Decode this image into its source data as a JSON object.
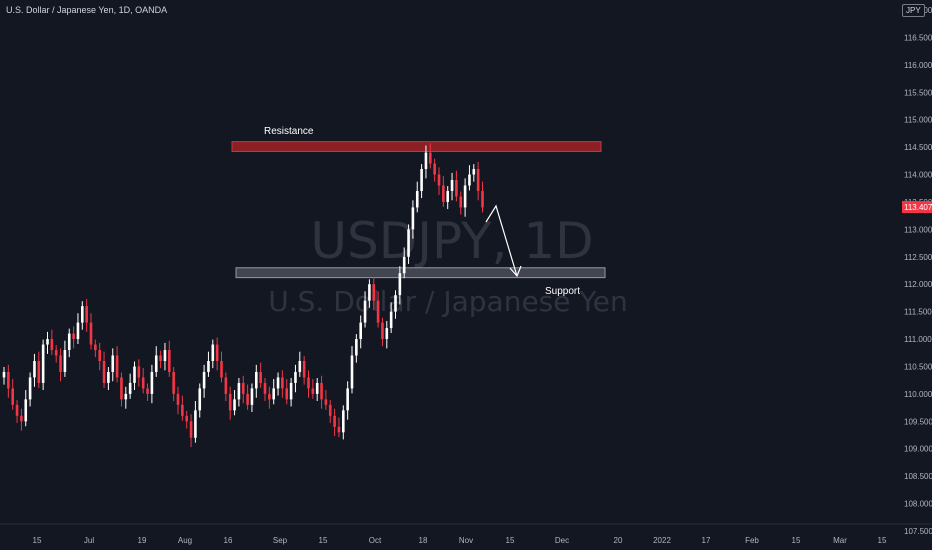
{
  "header": {
    "title": "U.S. Dollar / Japanese Yen, 1D, OANDA",
    "currency": "JPY"
  },
  "watermark": {
    "symbol": "USDJPY, 1D",
    "name": "U.S. Dollar / Japanese Yen"
  },
  "annotations": {
    "resistance_label": "Resistance",
    "support_label": "Support"
  },
  "colors": {
    "background": "#131722",
    "up": "#ffffff",
    "down": "#f23645",
    "resistance": "#8b1f24",
    "support": "#434651",
    "last_price": "#f23645"
  },
  "chart_data": {
    "type": "candlestick",
    "title": "U.S. Dollar / Japanese Yen, 1D, OANDA",
    "ylim": [
      107.5,
      117.0
    ],
    "y_ticks": [
      "107.500",
      "108.000",
      "108.500",
      "109.000",
      "109.500",
      "110.000",
      "110.500",
      "111.000",
      "111.500",
      "112.000",
      "112.500",
      "113.000",
      "113.500",
      "114.000",
      "114.500",
      "115.000",
      "115.500",
      "116.000",
      "116.500",
      "117.000"
    ],
    "x_ticks": [
      "15",
      "Jul",
      "19",
      "Aug",
      "16",
      "Sep",
      "15",
      "Oct",
      "18",
      "Nov",
      "15",
      "Dec",
      "20",
      "2022",
      "17",
      "Feb",
      "15",
      "Mar",
      "15"
    ],
    "last_price": "113.407",
    "resistance_zone": [
      114.42,
      114.6
    ],
    "support_zone": [
      112.12,
      112.3
    ],
    "closes": [
      110.4,
      110.1,
      109.8,
      109.6,
      109.5,
      109.9,
      110.3,
      110.6,
      110.2,
      110.9,
      111.0,
      110.8,
      110.7,
      110.4,
      110.8,
      111.1,
      111.0,
      111.3,
      111.6,
      111.3,
      110.9,
      110.8,
      110.6,
      110.2,
      110.4,
      110.7,
      110.3,
      109.9,
      110.0,
      110.2,
      110.5,
      110.3,
      110.1,
      110.0,
      110.4,
      110.7,
      110.6,
      110.8,
      110.4,
      110.0,
      109.8,
      109.6,
      109.5,
      109.2,
      109.7,
      110.1,
      110.4,
      110.6,
      110.9,
      110.6,
      110.3,
      110.0,
      109.7,
      109.9,
      110.2,
      110.0,
      109.8,
      110.1,
      110.4,
      110.2,
      110.0,
      109.9,
      110.1,
      110.3,
      110.1,
      109.9,
      110.2,
      110.4,
      110.6,
      110.3,
      110.1,
      110.0,
      110.2,
      109.9,
      109.8,
      109.6,
      109.4,
      109.3,
      109.7,
      110.1,
      110.7,
      111.0,
      111.3,
      111.7,
      112.0,
      111.7,
      111.3,
      111.0,
      111.2,
      111.5,
      111.8,
      112.2,
      112.5,
      113.0,
      113.4,
      113.7,
      114.1,
      114.4,
      114.2,
      114.0,
      113.8,
      113.5,
      113.7,
      113.9,
      113.6,
      113.4,
      113.8,
      114.0,
      114.1,
      113.7,
      113.4
    ]
  }
}
